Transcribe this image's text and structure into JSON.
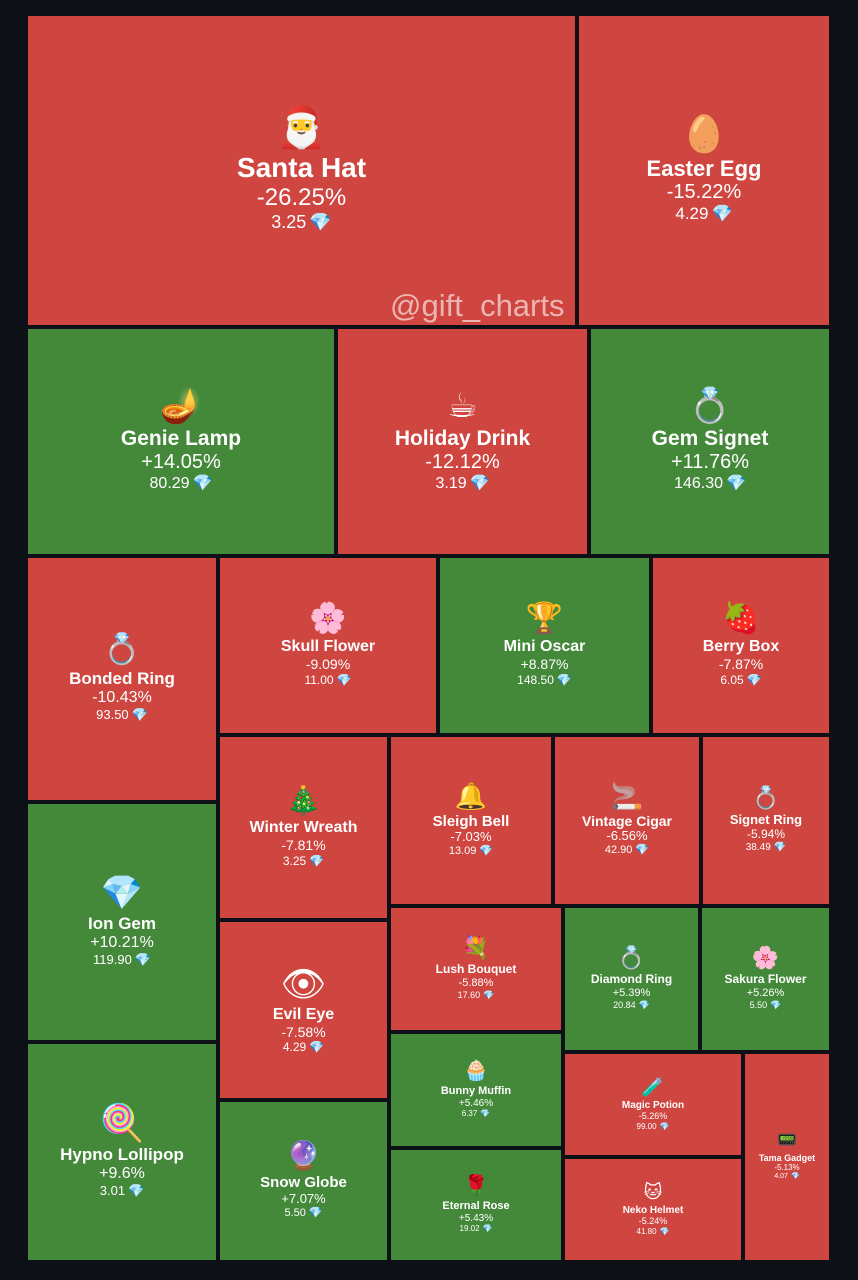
{
  "watermark": "@gift_charts",
  "colors": {
    "up": "#44883a",
    "down": "#cf4540",
    "background": "#0d1117",
    "gem": "#8fd3ff"
  },
  "currency_icon": "diamond-icon",
  "chart_data": {
    "type": "treemap",
    "title": "",
    "items": [
      {
        "name": "Santa Hat",
        "change": "-26.25%",
        "price": "3.25",
        "icon": "🎅"
      },
      {
        "name": "Easter Egg",
        "change": "-15.22%",
        "price": "4.29",
        "icon": "🥚"
      },
      {
        "name": "Genie Lamp",
        "change": "+14.05%",
        "price": "80.29",
        "icon": "🪔"
      },
      {
        "name": "Holiday Drink",
        "change": "-12.12%",
        "price": "3.19",
        "icon": "☕"
      },
      {
        "name": "Gem Signet",
        "change": "+11.76%",
        "price": "146.30",
        "icon": "💍"
      },
      {
        "name": "Bonded Ring",
        "change": "-10.43%",
        "price": "93.50",
        "icon": "💍"
      },
      {
        "name": "Skull Flower",
        "change": "-9.09%",
        "price": "11.00",
        "icon": "🌸"
      },
      {
        "name": "Mini Oscar",
        "change": "+8.87%",
        "price": "148.50",
        "icon": "🏆"
      },
      {
        "name": "Berry Box",
        "change": "-7.87%",
        "price": "6.05",
        "icon": "🍓"
      },
      {
        "name": "Ion Gem",
        "change": "+10.21%",
        "price": "119.90",
        "icon": "💎"
      },
      {
        "name": "Winter Wreath",
        "change": "-7.81%",
        "price": "3.25",
        "icon": "🎄"
      },
      {
        "name": "Sleigh Bell",
        "change": "-7.03%",
        "price": "13.09",
        "icon": "🔔"
      },
      {
        "name": "Vintage Cigar",
        "change": "-6.56%",
        "price": "42.90",
        "icon": "🚬"
      },
      {
        "name": "Signet Ring",
        "change": "-5.94%",
        "price": "38.49",
        "icon": "💍"
      },
      {
        "name": "Evil Eye",
        "change": "-7.58%",
        "price": "4.29",
        "icon": "👁"
      },
      {
        "name": "Lush Bouquet",
        "change": "-5.88%",
        "price": "17.60",
        "icon": "💐"
      },
      {
        "name": "Diamond Ring",
        "change": "+5.39%",
        "price": "20.84",
        "icon": "💍"
      },
      {
        "name": "Sakura Flower",
        "change": "+5.26%",
        "price": "5.50",
        "icon": "🌸"
      },
      {
        "name": "Hypno Lollipop",
        "change": "+9.6%",
        "price": "3.01",
        "icon": "🍭"
      },
      {
        "name": "Bunny Muffin",
        "change": "+5.46%",
        "price": "6.37",
        "icon": "🧁"
      },
      {
        "name": "Magic Potion",
        "change": "-5.26%",
        "price": "99.00",
        "icon": "🧪"
      },
      {
        "name": "Snow Globe",
        "change": "+7.07%",
        "price": "5.50",
        "icon": "🔮"
      },
      {
        "name": "Eternal Rose",
        "change": "+5.43%",
        "price": "19.02",
        "icon": "🌹"
      },
      {
        "name": "Neko Helmet",
        "change": "-5.24%",
        "price": "41.80",
        "icon": "🐱"
      },
      {
        "name": "Tama Gadget",
        "change": "-5.13%",
        "price": "4.07",
        "icon": "📟"
      }
    ]
  }
}
